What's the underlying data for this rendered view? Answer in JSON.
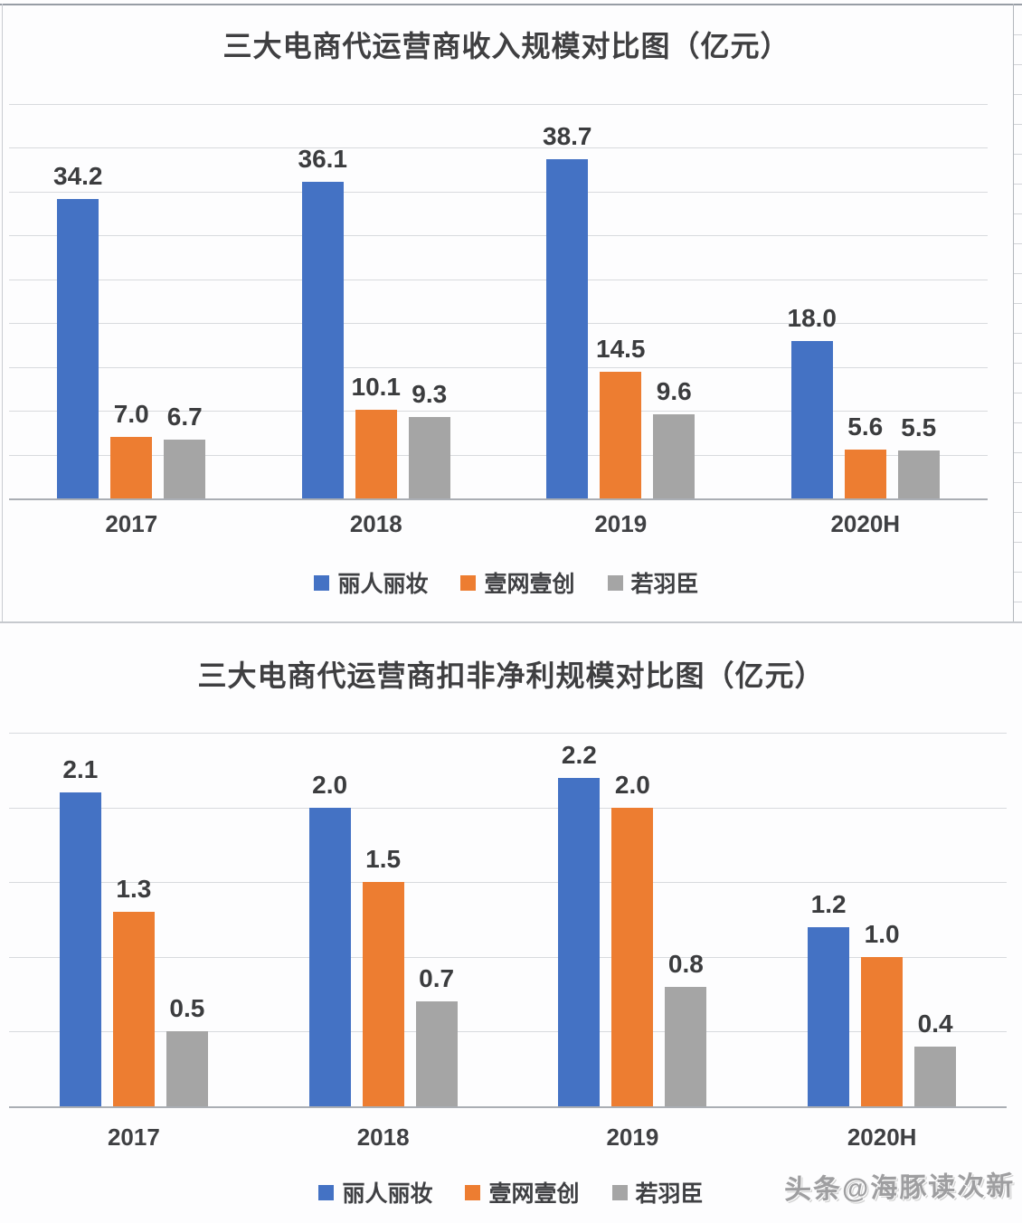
{
  "page": {
    "watermark": "头条@海豚读次新"
  },
  "colors": {
    "blue": "#4472C4",
    "orange": "#ED7D31",
    "gray": "#A5A5A5",
    "gridline": "#d8dade",
    "axis": "#aaaeb4",
    "title_text": "#3f3f41",
    "label_text": "#3b3c3e"
  },
  "chart_data": [
    {
      "type": "bar",
      "title": "三大电商代运营商收入规模对比图（亿元）",
      "categories": [
        "2017",
        "2018",
        "2019",
        "2020H"
      ],
      "series": [
        {
          "name": "丽人丽妆",
          "color": "#4472C4",
          "values": [
            34.2,
            36.1,
            38.7,
            18.0
          ]
        },
        {
          "name": "壹网壹创",
          "color": "#ED7D31",
          "values": [
            7.0,
            10.1,
            14.5,
            5.6
          ]
        },
        {
          "name": "若羽臣",
          "color": "#A5A5A5",
          "values": [
            6.7,
            9.3,
            9.6,
            5.5
          ]
        }
      ],
      "ylim": [
        0,
        45
      ],
      "gridline_step": 5,
      "grid": true,
      "legend_position": "bottom",
      "value_label_decimals": 1
    },
    {
      "type": "bar",
      "title": "三大电商代运营商扣非净利规模对比图（亿元）",
      "categories": [
        "2017",
        "2018",
        "2019",
        "2020H"
      ],
      "series": [
        {
          "name": "丽人丽妆",
          "color": "#4472C4",
          "values": [
            2.1,
            2.0,
            2.2,
            1.2
          ]
        },
        {
          "name": "壹网壹创",
          "color": "#ED7D31",
          "values": [
            1.3,
            1.5,
            2.0,
            1.0
          ]
        },
        {
          "name": "若羽臣",
          "color": "#A5A5A5",
          "values": [
            0.5,
            0.7,
            0.8,
            0.4
          ]
        }
      ],
      "ylim": [
        0,
        2.5
      ],
      "gridline_step": 0.5,
      "grid": true,
      "legend_position": "bottom",
      "value_label_decimals": 1
    }
  ]
}
